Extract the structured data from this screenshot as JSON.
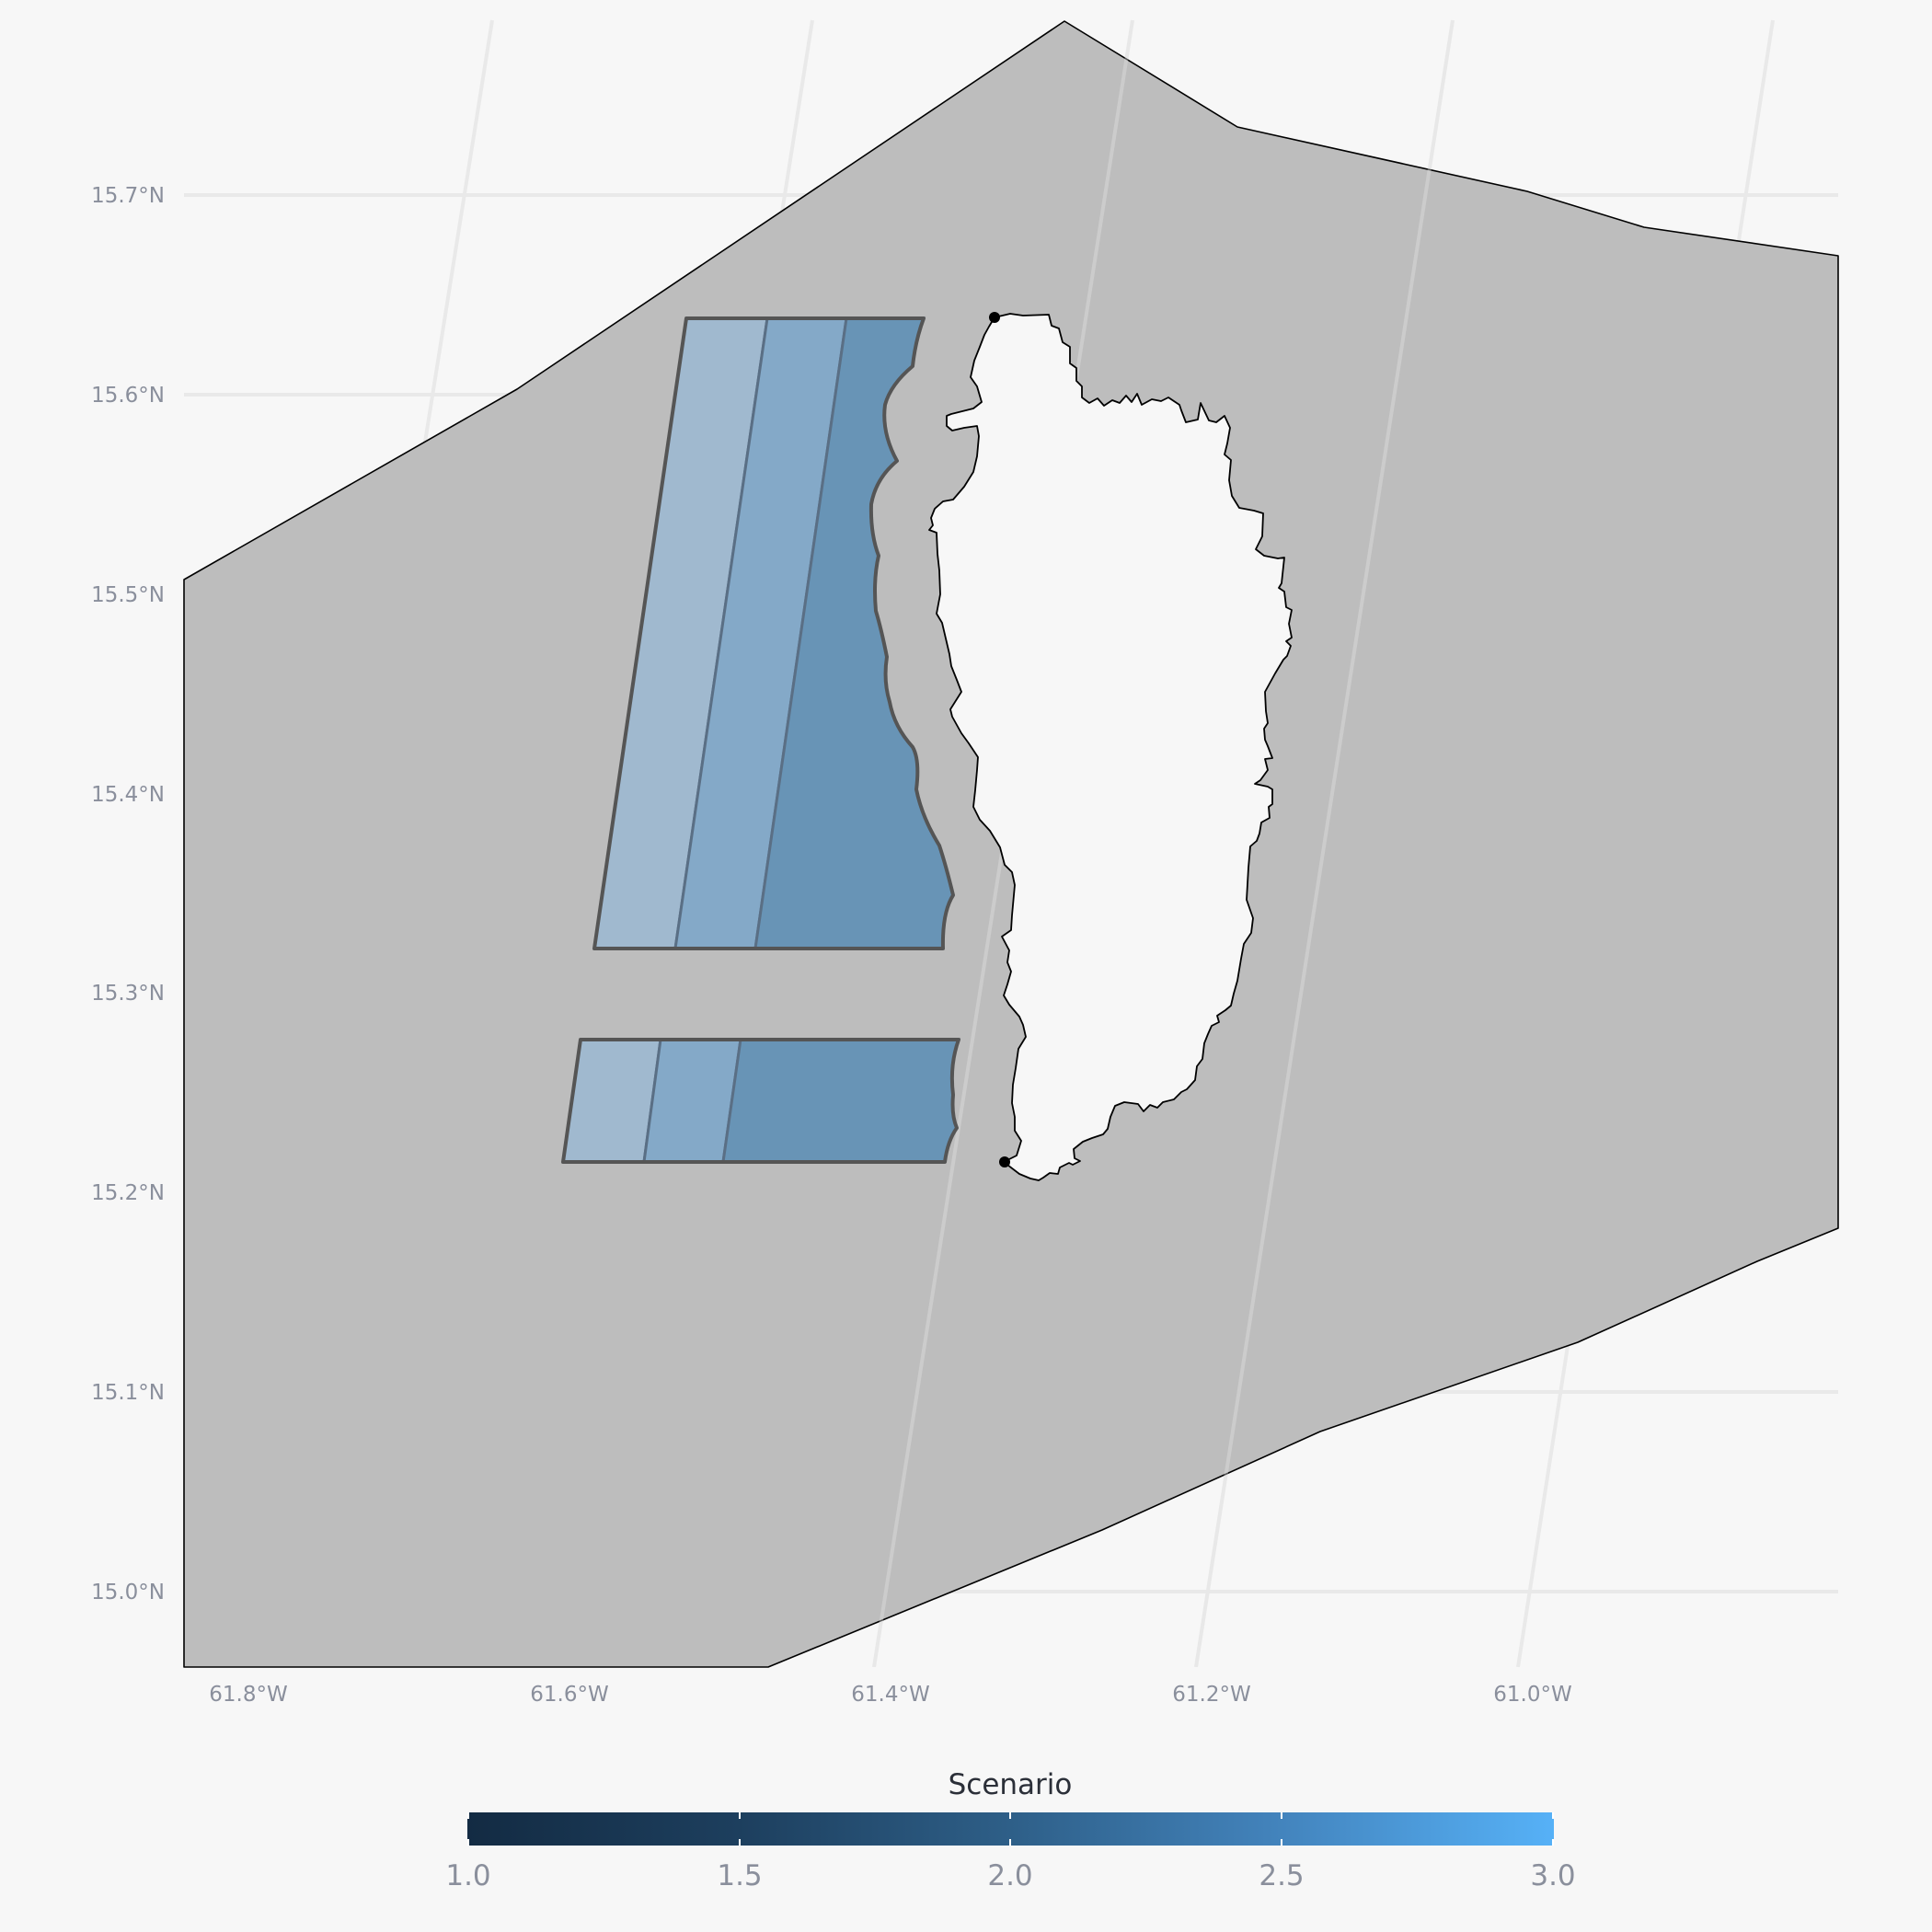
{
  "map": {
    "y_axis": {
      "labels": [
        "15.7°N",
        "15.6°N",
        "15.5°N",
        "15.4°N",
        "15.3°N",
        "15.2°N",
        "15.1°N",
        "15.0°N"
      ]
    },
    "x_axis": {
      "labels": [
        "61.8°W",
        "61.6°W",
        "61.4°W",
        "61.2°W",
        "61.0°W"
      ]
    },
    "colors": {
      "background": "#f7f7f7",
      "sea_zone": "#bdbdbd",
      "island": "#f7f7f7",
      "zone_outline": "#555555",
      "scenario_1": "#a0b9cf",
      "scenario_2": "#84a9c8",
      "scenario_3": "#6894b6"
    },
    "zones": [
      {
        "name": "north-zone",
        "bands": 3
      },
      {
        "name": "south-zone",
        "bands": 3
      }
    ],
    "markers": [
      "north-point",
      "south-point"
    ]
  },
  "legend": {
    "title": "Scenario",
    "ticks": [
      "1.0",
      "1.5",
      "2.0",
      "2.5",
      "3.0"
    ],
    "range": [
      1.0,
      3.0
    ],
    "color_low": "#132b43",
    "color_high": "#56b1f7"
  }
}
